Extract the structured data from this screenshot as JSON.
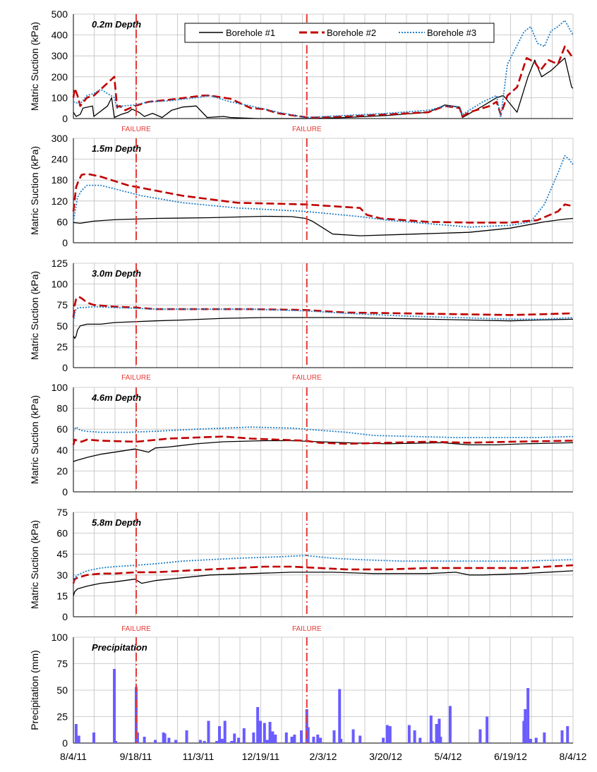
{
  "figure": {
    "x_tick_labels": [
      "8/4/11",
      "9/18/11",
      "11/3/11",
      "12/19/11",
      "2/3/12",
      "3/20/12",
      "5/4/12",
      "6/19/12",
      "8/4/12"
    ],
    "x_range_days": [
      0,
      366
    ],
    "failure_label": "FAILURE",
    "failure_days": [
      46,
      171
    ],
    "colors": {
      "borehole1": "#000000",
      "borehole2": "#c00000",
      "borehole3": "#1f7fc8",
      "failure": "#e53935",
      "bars": "#6a5cff",
      "grid": "#bfbfbf"
    },
    "legend": [
      "Borehole #1",
      "Borehole #2",
      "Borehole #3"
    ]
  },
  "chart_data": [
    {
      "type": "line",
      "title": "0.2m Depth",
      "ylabel": "Matric Suction (kPa)",
      "ylim": [
        0,
        500
      ],
      "yticks": [
        0,
        100,
        200,
        300,
        400,
        500
      ],
      "failure_labels_shown": true,
      "series": [
        {
          "name": "Borehole #1",
          "x": [
            0,
            2,
            5,
            7,
            14,
            15,
            25,
            28,
            30,
            35,
            40,
            43,
            48,
            52,
            58,
            65,
            72,
            80,
            90,
            98,
            110,
            115,
            135,
            150,
            170,
            200,
            230,
            260,
            272,
            283,
            285,
            300,
            310,
            315,
            325,
            333,
            338,
            343,
            350,
            360,
            365,
            366
          ],
          "y": [
            30,
            10,
            20,
            50,
            60,
            10,
            60,
            100,
            5,
            20,
            30,
            45,
            30,
            10,
            25,
            5,
            40,
            55,
            60,
            5,
            10,
            5,
            0,
            0,
            0,
            5,
            15,
            30,
            65,
            55,
            5,
            60,
            100,
            110,
            30,
            200,
            280,
            200,
            230,
            290,
            150,
            145
          ]
        },
        {
          "name": "Borehole #2",
          "x": [
            0,
            1,
            3,
            5,
            10,
            15,
            20,
            30,
            32,
            34,
            38,
            45,
            55,
            70,
            95,
            100,
            115,
            130,
            140,
            150,
            172,
            180,
            200,
            230,
            260,
            272,
            283,
            285,
            290,
            305,
            310,
            313,
            318,
            325,
            332,
            338,
            342,
            348,
            355,
            360,
            366
          ],
          "y": [
            100,
            145,
            110,
            60,
            100,
            110,
            140,
            200,
            55,
            60,
            40,
            60,
            80,
            90,
            110,
            110,
            95,
            50,
            45,
            25,
            5,
            5,
            10,
            20,
            30,
            60,
            50,
            10,
            30,
            60,
            80,
            20,
            110,
            150,
            290,
            270,
            230,
            280,
            260,
            345,
            290
          ]
        },
        {
          "name": "Borehole #3",
          "x": [
            0,
            5,
            10,
            15,
            20,
            30,
            32,
            36,
            45,
            55,
            70,
            90,
            100,
            115,
            130,
            150,
            170,
            200,
            230,
            260,
            272,
            283,
            285,
            290,
            300,
            310,
            313,
            318,
            325,
            330,
            335,
            340,
            345,
            350,
            355,
            360,
            366
          ],
          "y": [
            80,
            70,
            110,
            120,
            140,
            100,
            50,
            60,
            65,
            80,
            85,
            100,
            110,
            80,
            60,
            30,
            5,
            15,
            25,
            40,
            60,
            55,
            20,
            40,
            80,
            110,
            5,
            260,
            350,
            415,
            440,
            360,
            345,
            420,
            440,
            470,
            400
          ]
        }
      ]
    },
    {
      "type": "line",
      "title": "1.5m Depth",
      "ylabel": "Matric Suction (kPa)",
      "ylim": [
        0,
        300
      ],
      "yticks": [
        0,
        60,
        120,
        180,
        240,
        300
      ],
      "failure_labels_shown": false,
      "series": [
        {
          "name": "Borehole #1",
          "x": [
            0,
            5,
            15,
            30,
            60,
            100,
            140,
            160,
            170,
            175,
            190,
            210,
            250,
            290,
            320,
            345,
            360,
            366
          ],
          "y": [
            58,
            56,
            62,
            66,
            70,
            72,
            76,
            75,
            70,
            62,
            25,
            20,
            25,
            30,
            42,
            60,
            68,
            70
          ]
        },
        {
          "name": "Borehole #2",
          "x": [
            0,
            2,
            4,
            6,
            10,
            20,
            40,
            80,
            120,
            170,
            210,
            215,
            225,
            260,
            290,
            320,
            340,
            355,
            360,
            366
          ],
          "y": [
            90,
            160,
            180,
            195,
            198,
            190,
            165,
            135,
            115,
            110,
            100,
            80,
            70,
            60,
            58,
            58,
            65,
            90,
            110,
            105
          ]
        },
        {
          "name": "Borehole #3",
          "x": [
            0,
            3,
            6,
            10,
            20,
            30,
            50,
            80,
            120,
            170,
            210,
            230,
            260,
            290,
            320,
            335,
            345,
            355,
            360,
            363,
            366
          ],
          "y": [
            60,
            130,
            150,
            165,
            165,
            155,
            135,
            115,
            100,
            90,
            75,
            65,
            55,
            45,
            50,
            60,
            110,
            200,
            250,
            240,
            225
          ]
        }
      ]
    },
    {
      "type": "line",
      "title": "3.0m Depth",
      "ylabel": "Matric Suction (kPa)",
      "ylim": [
        0,
        125
      ],
      "yticks": [
        0,
        25,
        50,
        75,
        100,
        125
      ],
      "failure_labels_shown": true,
      "series": [
        {
          "name": "Borehole #1",
          "x": [
            0,
            1,
            2,
            3,
            5,
            10,
            20,
            30,
            45,
            60,
            80,
            110,
            140,
            170,
            200,
            230,
            260,
            290,
            320,
            340,
            366
          ],
          "y": [
            38,
            35,
            38,
            45,
            50,
            52,
            52,
            54,
            55,
            56,
            57,
            59,
            60,
            60,
            60,
            59,
            58,
            57,
            56,
            57,
            58
          ]
        },
        {
          "name": "Borehole #2",
          "x": [
            0,
            1,
            2,
            4,
            6,
            10,
            15,
            30,
            46,
            60,
            90,
            130,
            170,
            200,
            240,
            280,
            320,
            345,
            366
          ],
          "y": [
            60,
            75,
            82,
            85,
            83,
            78,
            75,
            73,
            72,
            70,
            70,
            70,
            69,
            66,
            65,
            64,
            63,
            64,
            65
          ]
        },
        {
          "name": "Borehole #3",
          "x": [
            0,
            1,
            2,
            4,
            8,
            15,
            30,
            46,
            60,
            90,
            130,
            170,
            200,
            240,
            280,
            320,
            345,
            366
          ],
          "y": [
            55,
            65,
            70,
            72,
            72,
            73,
            72,
            71,
            70,
            70,
            70,
            68,
            65,
            62,
            60,
            58,
            58,
            60
          ]
        }
      ]
    },
    {
      "type": "line",
      "title": "4.6m Depth",
      "ylabel": "Matric Suction (kPa)",
      "ylim": [
        0,
        100
      ],
      "yticks": [
        0,
        20,
        40,
        60,
        80,
        100
      ],
      "failure_labels_shown": false,
      "series": [
        {
          "name": "Borehole #1",
          "x": [
            0,
            2,
            10,
            20,
            30,
            45,
            55,
            60,
            70,
            90,
            110,
            140,
            160,
            180,
            200,
            230,
            270,
            290,
            310,
            330,
            366
          ],
          "y": [
            29,
            30,
            33,
            36,
            38,
            41,
            38,
            42,
            43,
            46,
            48,
            49,
            49,
            48,
            47,
            46,
            47,
            45,
            45,
            46,
            47
          ]
        },
        {
          "name": "Borehole #2",
          "x": [
            0,
            1,
            3,
            6,
            10,
            20,
            46,
            70,
            90,
            110,
            130,
            150,
            170,
            180,
            200,
            230,
            260,
            290,
            320,
            366
          ],
          "y": [
            45,
            50,
            49,
            48,
            50,
            49,
            48,
            51,
            52,
            53,
            51,
            50,
            49,
            47,
            46,
            47,
            48,
            47,
            48,
            49
          ]
        },
        {
          "name": "Borehole #3",
          "x": [
            0,
            2,
            5,
            10,
            20,
            40,
            60,
            90,
            130,
            160,
            180,
            200,
            220,
            250,
            280,
            310,
            340,
            366
          ],
          "y": [
            58,
            62,
            59,
            58,
            57,
            57,
            58,
            60,
            62,
            61,
            59,
            57,
            54,
            53,
            52,
            52,
            52,
            53
          ]
        }
      ]
    },
    {
      "type": "line",
      "title": "5.8m Depth",
      "ylabel": "Matric Suction (kPa)",
      "ylim": [
        0,
        75
      ],
      "yticks": [
        0,
        15,
        30,
        45,
        60,
        75
      ],
      "failure_labels_shown": true,
      "series": [
        {
          "name": "Borehole #1",
          "x": [
            0,
            1,
            3,
            10,
            20,
            30,
            45,
            50,
            60,
            80,
            100,
            130,
            160,
            190,
            220,
            260,
            280,
            290,
            300,
            330,
            366
          ],
          "y": [
            15,
            18,
            20,
            22,
            24,
            25,
            27,
            24,
            26,
            28,
            30,
            31,
            32,
            32,
            31,
            31,
            32,
            30,
            30,
            31,
            33
          ]
        },
        {
          "name": "Borehole #2",
          "x": [
            0,
            1,
            3,
            10,
            20,
            30,
            46,
            60,
            80,
            100,
            120,
            140,
            160,
            180,
            200,
            230,
            260,
            300,
            330,
            366
          ],
          "y": [
            24,
            27,
            28,
            30,
            31,
            31,
            32,
            32,
            33,
            34,
            35,
            36,
            36,
            35,
            34,
            34,
            35,
            35,
            35,
            37
          ]
        },
        {
          "name": "Borehole #3",
          "x": [
            0,
            1,
            3,
            10,
            20,
            30,
            46,
            60,
            80,
            100,
            120,
            150,
            170,
            190,
            210,
            240,
            270,
            300,
            330,
            366
          ],
          "y": [
            25,
            28,
            30,
            33,
            35,
            36,
            37,
            38,
            40,
            41,
            42,
            43,
            44,
            42,
            41,
            40,
            40,
            40,
            40,
            41
          ]
        }
      ]
    },
    {
      "type": "bar",
      "title": "Precipitation",
      "ylabel": "Precipitation (mm)",
      "ylim": [
        0,
        100
      ],
      "yticks": [
        0,
        25,
        50,
        75,
        100
      ],
      "failure_labels_shown": false,
      "x": [
        2,
        4,
        15,
        30,
        31,
        46,
        47,
        52,
        60,
        66,
        67,
        70,
        75,
        83,
        93,
        96,
        99,
        105,
        107,
        109,
        111,
        116,
        118,
        121,
        125,
        132,
        135,
        137,
        140,
        142,
        144,
        146,
        148,
        156,
        160,
        162,
        167,
        171,
        172,
        176,
        179,
        181,
        191,
        195,
        196,
        205,
        210,
        227,
        230,
        232,
        246,
        250,
        254,
        262,
        263,
        266,
        268,
        269,
        276,
        298,
        303,
        330,
        331,
        333,
        335,
        339,
        345,
        358,
        362
      ],
      "values": [
        18,
        7,
        10,
        70,
        2,
        53,
        10,
        6,
        3,
        10,
        9,
        5,
        3,
        12,
        3,
        2,
        21,
        2,
        16,
        4,
        21,
        2,
        9,
        5,
        14,
        10,
        34,
        21,
        19,
        3,
        20,
        11,
        8,
        10,
        6,
        8,
        12,
        32,
        15,
        6,
        8,
        5,
        12,
        51,
        4,
        13,
        7,
        5,
        17,
        16,
        17,
        12,
        5,
        26,
        2,
        18,
        23,
        6,
        35,
        13,
        25,
        21,
        32,
        52,
        4,
        5,
        10,
        12,
        16
      ]
    }
  ]
}
